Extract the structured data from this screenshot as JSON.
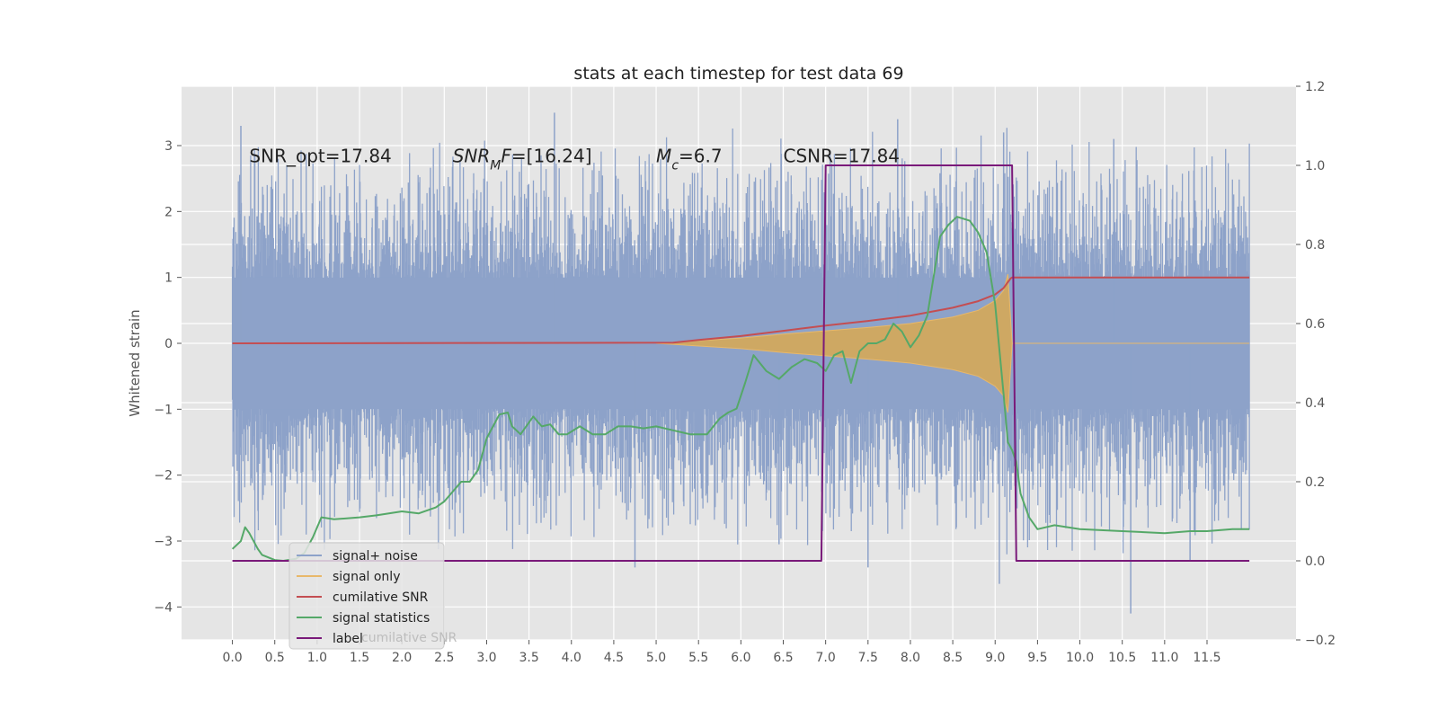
{
  "chart_data": {
    "type": "line",
    "title": "stats at each timestep for test data 69",
    "ylabel": "Whitened strain",
    "xlim": [
      -0.6,
      12.55
    ],
    "ylim": [
      -4.5,
      3.9
    ],
    "ylim_right": [
      -0.2,
      1.2
    ],
    "x_ticks": [
      0.0,
      0.5,
      1.0,
      1.5,
      2.0,
      2.5,
      3.0,
      3.5,
      4.0,
      4.5,
      5.0,
      5.5,
      6.0,
      6.5,
      7.0,
      7.5,
      8.0,
      8.5,
      9.0,
      9.5,
      10.0,
      10.5,
      11.0,
      11.5
    ],
    "x_tick_labels": [
      "0.0",
      "0.5",
      "1.0",
      "1.5",
      "2.0",
      "2.5",
      "3.0",
      "3.5",
      "4.0",
      "4.5",
      "5.0",
      "5.5",
      "6.0",
      "6.5",
      "7.0",
      "7.5",
      "8.0",
      "8.5",
      "9.0",
      "9.5",
      "10.0",
      "10.5",
      "11.0",
      "11.5"
    ],
    "y_ticks": [
      -4,
      -3,
      -2,
      -1,
      0,
      1,
      2,
      3
    ],
    "y_tick_labels": [
      "−4",
      "−3",
      "−2",
      "−1",
      "0",
      "1",
      "2",
      "3"
    ],
    "y_ticks_right": [
      -0.2,
      0.0,
      0.2,
      0.4,
      0.6,
      0.8,
      1.0,
      1.2
    ],
    "y_tick_labels_right": [
      "−0.2",
      "0.0",
      "0.2",
      "0.4",
      "0.6",
      "0.8",
      "1.0",
      "1.2"
    ],
    "grid": true,
    "legend_position": "lower-left",
    "annotations": [
      {
        "segments": [
          {
            "t": "SNR_opt=17.84"
          }
        ],
        "x": 0.2,
        "y": 2.75
      },
      {
        "segments": [
          {
            "t": "SNR",
            "i": true
          },
          {
            "t": "M",
            "i": true,
            "sub": true
          },
          {
            "t": "F",
            "i": true
          },
          {
            "t": "=[16.24]"
          }
        ],
        "x": 2.6,
        "y": 2.75
      },
      {
        "segments": [
          {
            "t": "M",
            "i": true
          },
          {
            "t": "c",
            "i": true,
            "sub": true
          },
          {
            "t": "=6.7"
          }
        ],
        "x": 5.0,
        "y": 2.75
      },
      {
        "segments": [
          {
            "t": "CSNR=17.84"
          }
        ],
        "x": 6.5,
        "y": 2.75
      }
    ],
    "series": [
      {
        "name": "signal+ noise",
        "axis": "left",
        "color": "#8da2c9",
        "x_range": [
          0.0,
          12.0
        ],
        "envelope_typical": 1.2,
        "envelope_peak": 3.3,
        "notable_spikes": [
          [
            0.1,
            3.3
          ],
          [
            3.8,
            3.5
          ],
          [
            4.75,
            -3.4
          ],
          [
            6.45,
            -3.05
          ],
          [
            7.5,
            -3.4
          ],
          [
            7.85,
            3.4
          ],
          [
            9.05,
            -3.65
          ],
          [
            9.1,
            3.2
          ],
          [
            10.6,
            -4.1
          ],
          [
            10.4,
            3.1
          ],
          [
            11.3,
            -3.3
          ]
        ]
      },
      {
        "name": "signal only",
        "axis": "left",
        "color": "#e8b86a",
        "envelope": [
          [
            5.0,
            0.0
          ],
          [
            6.0,
            0.08
          ],
          [
            6.5,
            0.14
          ],
          [
            7.0,
            0.19
          ],
          [
            7.5,
            0.24
          ],
          [
            8.0,
            0.3
          ],
          [
            8.5,
            0.4
          ],
          [
            8.8,
            0.5
          ],
          [
            9.0,
            0.65
          ],
          [
            9.1,
            0.8
          ],
          [
            9.15,
            1.05
          ],
          [
            9.2,
            0.0
          ],
          [
            12.0,
            0.0
          ]
        ]
      },
      {
        "name": "cumilative SNR",
        "axis": "left",
        "color": "#c44e52",
        "x": [
          0.0,
          5.2,
          5.5,
          6.0,
          6.5,
          7.0,
          7.5,
          8.0,
          8.5,
          8.8,
          9.0,
          9.1,
          9.18,
          9.2,
          12.0
        ],
        "values": [
          0.0,
          0.01,
          0.05,
          0.11,
          0.19,
          0.27,
          0.34,
          0.42,
          0.54,
          0.64,
          0.74,
          0.84,
          0.98,
          1.0,
          1.0
        ]
      },
      {
        "name": "signal statistics",
        "axis": "right",
        "color": "#55a868",
        "x": [
          0.0,
          0.1,
          0.15,
          0.2,
          0.3,
          0.35,
          0.5,
          0.6,
          0.75,
          0.85,
          0.95,
          1.05,
          1.2,
          1.5,
          1.7,
          2.0,
          2.2,
          2.4,
          2.5,
          2.7,
          2.8,
          2.9,
          3.0,
          3.15,
          3.25,
          3.3,
          3.4,
          3.55,
          3.65,
          3.75,
          3.85,
          3.95,
          4.1,
          4.25,
          4.4,
          4.55,
          4.7,
          4.85,
          5.0,
          5.2,
          5.4,
          5.6,
          5.75,
          5.85,
          5.95,
          6.05,
          6.15,
          6.3,
          6.45,
          6.6,
          6.75,
          6.9,
          7.0,
          7.1,
          7.2,
          7.3,
          7.4,
          7.5,
          7.6,
          7.7,
          7.8,
          7.9,
          8.0,
          8.1,
          8.2,
          8.35,
          8.45,
          8.55,
          8.7,
          8.8,
          8.9,
          9.0,
          9.1,
          9.15,
          9.2,
          9.25,
          9.3,
          9.4,
          9.5,
          9.7,
          10.0,
          10.5,
          11.0,
          11.3,
          11.5,
          11.8,
          12.0
        ],
        "values": [
          0.03,
          0.05,
          0.085,
          0.07,
          0.03,
          0.015,
          0.002,
          0.0,
          0.005,
          0.02,
          0.06,
          0.11,
          0.105,
          0.11,
          0.115,
          0.125,
          0.12,
          0.135,
          0.15,
          0.2,
          0.2,
          0.23,
          0.31,
          0.37,
          0.375,
          0.34,
          0.32,
          0.365,
          0.34,
          0.345,
          0.32,
          0.32,
          0.34,
          0.32,
          0.32,
          0.34,
          0.34,
          0.335,
          0.34,
          0.33,
          0.32,
          0.32,
          0.36,
          0.375,
          0.385,
          0.45,
          0.52,
          0.48,
          0.46,
          0.49,
          0.51,
          0.5,
          0.48,
          0.52,
          0.53,
          0.45,
          0.53,
          0.55,
          0.55,
          0.56,
          0.6,
          0.58,
          0.54,
          0.57,
          0.62,
          0.82,
          0.85,
          0.87,
          0.86,
          0.83,
          0.78,
          0.65,
          0.42,
          0.3,
          0.28,
          0.25,
          0.17,
          0.11,
          0.08,
          0.09,
          0.08,
          0.075,
          0.07,
          0.075,
          0.075,
          0.08,
          0.08
        ]
      },
      {
        "name": "label",
        "axis": "right",
        "color": "#7a1a7a",
        "x": [
          0.0,
          6.95,
          7.0,
          9.2,
          9.25,
          12.0
        ],
        "values": [
          0.0,
          0.0,
          1.0,
          1.0,
          0.0,
          0.0
        ]
      }
    ],
    "legend_ghost_text": "cumilative SNR"
  }
}
